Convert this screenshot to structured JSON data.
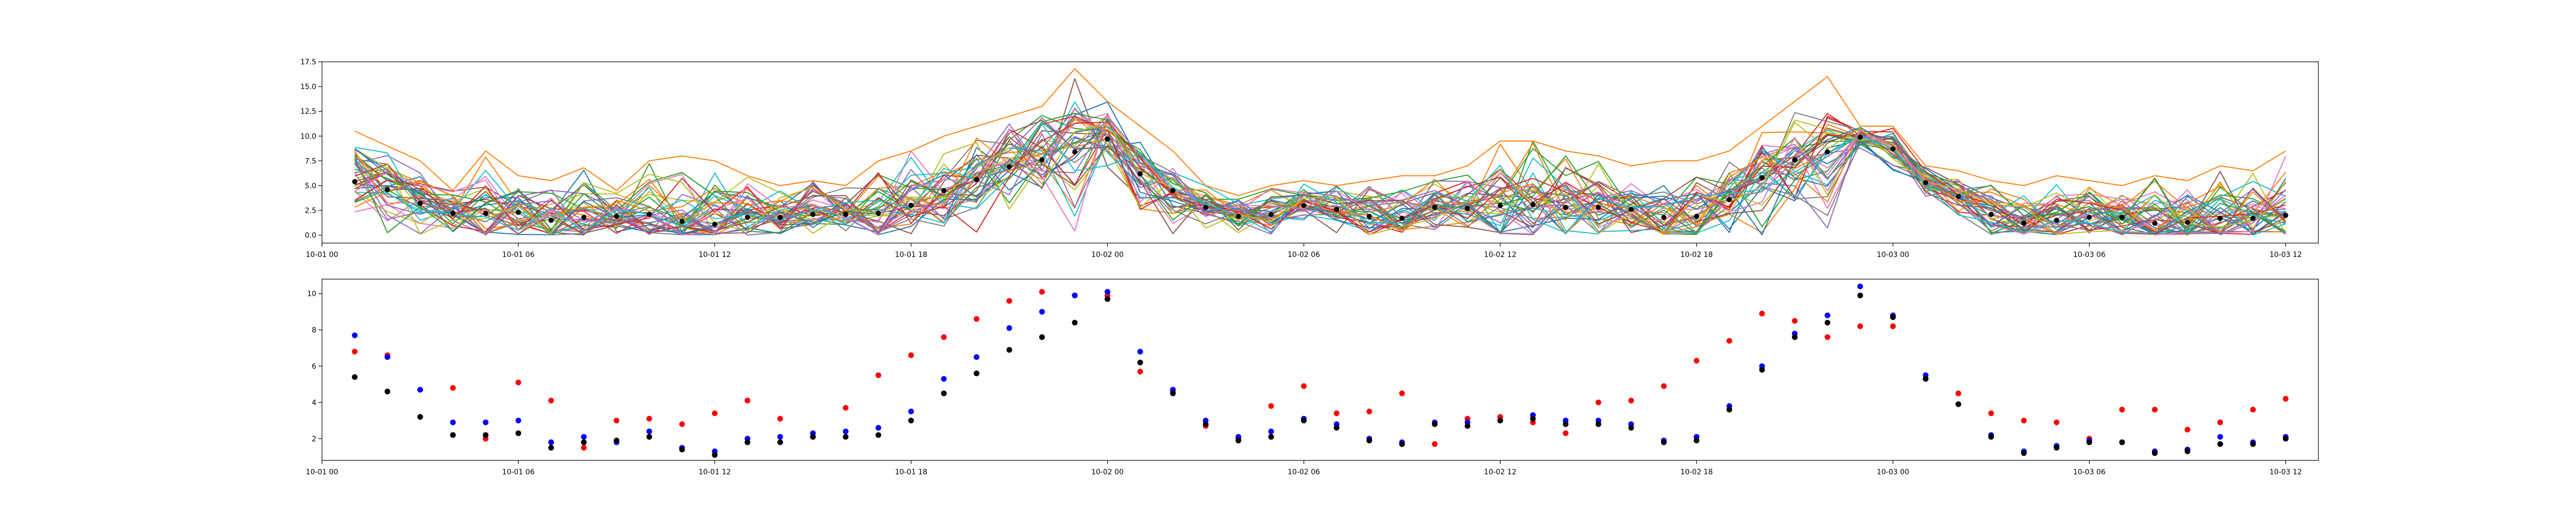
{
  "chart_data": [
    {
      "type": "line",
      "title": "",
      "xlabel": "",
      "ylabel": "",
      "x_start": "10-01 01:00",
      "x_step_hours": 1,
      "x_count": 60,
      "xlim": [
        "10-01 00:00",
        "10-03 13:00"
      ],
      "ylim": [
        -0.8,
        17.5
      ],
      "xticks": [
        "10-01 00",
        "10-01 06",
        "10-01 12",
        "10-01 18",
        "10-02 00",
        "10-02 06",
        "10-02 12",
        "10-02 18",
        "10-03 00",
        "10-03 06",
        "10-03 12"
      ],
      "yticks": [
        "0.0",
        "2.5",
        "5.0",
        "7.5",
        "10.0",
        "12.5",
        "15.0",
        "17.5"
      ],
      "grid": false,
      "legend": "none",
      "series_count": 40,
      "series_colors": [
        "#1f77b4",
        "#ff7f0e",
        "#2ca02c",
        "#d62728",
        "#9467bd",
        "#8c564b",
        "#e377c2",
        "#7f7f7f",
        "#bcbd22",
        "#17becf"
      ],
      "mean_marker_color": "#000000",
      "mean_values": [
        5.4,
        4.6,
        3.2,
        2.2,
        2.2,
        2.3,
        1.5,
        1.8,
        1.9,
        2.1,
        1.4,
        1.1,
        1.8,
        1.8,
        2.1,
        2.1,
        2.2,
        3.0,
        4.5,
        5.6,
        6.9,
        7.6,
        8.4,
        9.7,
        6.2,
        4.5,
        2.8,
        1.9,
        2.1,
        3.0,
        2.6,
        1.9,
        1.7,
        2.8,
        2.7,
        3.0,
        3.1,
        2.8,
        2.8,
        2.6,
        1.8,
        1.9,
        3.6,
        5.8,
        7.6,
        8.4,
        9.9,
        8.7,
        5.3,
        3.9,
        2.1,
        1.2,
        1.5,
        1.8,
        1.8,
        1.2,
        1.3,
        1.7,
        1.7,
        2.0
      ],
      "max_envelope_values": [
        10.5,
        9.0,
        7.5,
        4.5,
        8.5,
        6.0,
        5.5,
        6.8,
        4.5,
        7.5,
        8.0,
        7.5,
        6.0,
        5.0,
        5.5,
        5.0,
        7.5,
        8.5,
        10.0,
        11.0,
        12.0,
        13.0,
        16.8,
        13.5,
        11.0,
        8.5,
        5.0,
        4.0,
        5.0,
        5.5,
        5.0,
        5.5,
        6.0,
        6.0,
        7.0,
        9.5,
        9.5,
        8.5,
        8.0,
        7.0,
        7.5,
        7.5,
        8.5,
        11.0,
        13.5,
        16.0,
        11.0,
        11.0,
        7.0,
        6.5,
        5.5,
        5.0,
        6.0,
        5.5,
        5.0,
        6.0,
        5.5,
        7.0,
        6.5,
        8.5
      ]
    },
    {
      "type": "scatter",
      "title": "",
      "xlabel": "",
      "ylabel": "",
      "x_start": "10-01 01:00",
      "x_step_hours": 1,
      "x_count": 60,
      "xlim": [
        "10-01 00:00",
        "10-03 13:00"
      ],
      "ylim": [
        0.8,
        10.8
      ],
      "xticks": [
        "10-01 00",
        "10-01 06",
        "10-01 12",
        "10-01 18",
        "10-02 00",
        "10-02 06",
        "10-02 12",
        "10-02 18",
        "10-03 00",
        "10-03 06",
        "10-03 12"
      ],
      "yticks": [
        "2",
        "4",
        "6",
        "8",
        "10"
      ],
      "grid": false,
      "legend": "none",
      "series": [
        {
          "color": "#ff0000",
          "values": [
            6.8,
            6.6,
            4.7,
            4.8,
            2.0,
            5.1,
            4.1,
            1.5,
            3.0,
            3.1,
            2.8,
            3.4,
            4.1,
            3.1,
            2.1,
            3.7,
            5.5,
            6.6,
            7.6,
            8.6,
            9.6,
            10.1,
            9.9,
            9.9,
            5.7,
            4.6,
            2.7,
            2.0,
            3.8,
            4.9,
            3.4,
            3.5,
            4.5,
            1.7,
            3.1,
            3.2,
            2.9,
            2.3,
            4.0,
            4.1,
            4.9,
            6.3,
            7.4,
            8.9,
            8.5,
            7.6,
            8.2,
            8.2,
            5.3,
            4.5,
            3.4,
            3.0,
            2.9,
            2.0,
            3.6,
            3.6,
            2.5,
            2.9,
            3.6,
            4.2
          ]
        },
        {
          "color": "#0000ff",
          "values": [
            7.7,
            6.5,
            4.7,
            2.9,
            2.9,
            3.0,
            1.8,
            2.1,
            1.8,
            2.4,
            1.5,
            1.3,
            2.0,
            2.1,
            2.3,
            2.4,
            2.6,
            3.5,
            5.3,
            6.5,
            8.1,
            9.0,
            9.9,
            10.1,
            6.8,
            4.7,
            3.0,
            2.1,
            2.4,
            3.1,
            2.8,
            2.0,
            1.8,
            2.9,
            2.9,
            3.0,
            3.3,
            3.0,
            3.0,
            2.8,
            1.9,
            2.1,
            3.8,
            6.0,
            7.8,
            8.8,
            10.4,
            8.8,
            5.5,
            3.9,
            2.2,
            1.3,
            1.6,
            1.9,
            1.8,
            1.3,
            1.4,
            2.1,
            1.8,
            2.1
          ]
        },
        {
          "color": "#000000",
          "values": [
            5.4,
            4.6,
            3.2,
            2.2,
            2.2,
            2.3,
            1.5,
            1.8,
            1.9,
            2.1,
            1.4,
            1.1,
            1.8,
            1.8,
            2.1,
            2.1,
            2.2,
            3.0,
            4.5,
            5.6,
            6.9,
            7.6,
            8.4,
            9.7,
            6.2,
            4.5,
            2.8,
            1.9,
            2.1,
            3.0,
            2.6,
            1.9,
            1.7,
            2.8,
            2.7,
            3.0,
            3.1,
            2.8,
            2.8,
            2.6,
            1.8,
            1.9,
            3.6,
            5.8,
            7.6,
            8.4,
            9.9,
            8.7,
            5.3,
            3.9,
            2.1,
            1.2,
            1.5,
            1.8,
            1.8,
            1.2,
            1.3,
            1.7,
            1.7,
            2.0
          ]
        }
      ]
    }
  ]
}
